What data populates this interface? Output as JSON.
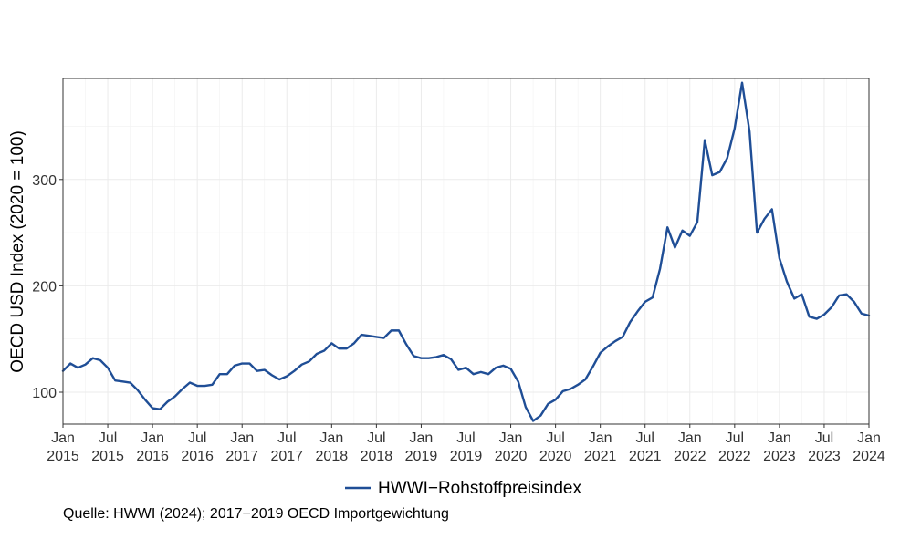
{
  "chart_data": {
    "type": "line",
    "title": "",
    "xlabel": "",
    "ylabel": "OECD USD Index (2020 = 100)",
    "ylim": [
      70,
      395
    ],
    "xlim": [
      "2015-01",
      "2024-01"
    ],
    "yticks": [
      100,
      200,
      300
    ],
    "xticks": [
      {
        "date": "2015-01",
        "month": "Jan",
        "year": "2015"
      },
      {
        "date": "2015-07",
        "month": "Jul",
        "year": "2015"
      },
      {
        "date": "2016-01",
        "month": "Jan",
        "year": "2016"
      },
      {
        "date": "2016-07",
        "month": "Jul",
        "year": "2016"
      },
      {
        "date": "2017-01",
        "month": "Jan",
        "year": "2017"
      },
      {
        "date": "2017-07",
        "month": "Jul",
        "year": "2017"
      },
      {
        "date": "2018-01",
        "month": "Jan",
        "year": "2018"
      },
      {
        "date": "2018-07",
        "month": "Jul",
        "year": "2018"
      },
      {
        "date": "2019-01",
        "month": "Jan",
        "year": "2019"
      },
      {
        "date": "2019-07",
        "month": "Jul",
        "year": "2019"
      },
      {
        "date": "2020-01",
        "month": "Jan",
        "year": "2020"
      },
      {
        "date": "2020-07",
        "month": "Jul",
        "year": "2020"
      },
      {
        "date": "2021-01",
        "month": "Jan",
        "year": "2021"
      },
      {
        "date": "2021-07",
        "month": "Jul",
        "year": "2021"
      },
      {
        "date": "2022-01",
        "month": "Jan",
        "year": "2022"
      },
      {
        "date": "2022-07",
        "month": "Jul",
        "year": "2022"
      },
      {
        "date": "2023-01",
        "month": "Jan",
        "year": "2023"
      },
      {
        "date": "2023-07",
        "month": "Jul",
        "year": "2023"
      },
      {
        "date": "2024-01",
        "month": "Jan",
        "year": "2024"
      }
    ],
    "grid": true,
    "legend_position": "bottom",
    "series": [
      {
        "name": "HWWI−Rohstoffpreisindex",
        "color": "#1f4e96",
        "x": [
          "2015-01",
          "2015-02",
          "2015-03",
          "2015-04",
          "2015-05",
          "2015-06",
          "2015-07",
          "2015-08",
          "2015-09",
          "2015-10",
          "2015-11",
          "2015-12",
          "2016-01",
          "2016-02",
          "2016-03",
          "2016-04",
          "2016-05",
          "2016-06",
          "2016-07",
          "2016-08",
          "2016-09",
          "2016-10",
          "2016-11",
          "2016-12",
          "2017-01",
          "2017-02",
          "2017-03",
          "2017-04",
          "2017-05",
          "2017-06",
          "2017-07",
          "2017-08",
          "2017-09",
          "2017-10",
          "2017-11",
          "2017-12",
          "2018-01",
          "2018-02",
          "2018-03",
          "2018-04",
          "2018-05",
          "2018-06",
          "2018-07",
          "2018-08",
          "2018-09",
          "2018-10",
          "2018-11",
          "2018-12",
          "2019-01",
          "2019-02",
          "2019-03",
          "2019-04",
          "2019-05",
          "2019-06",
          "2019-07",
          "2019-08",
          "2019-09",
          "2019-10",
          "2019-11",
          "2019-12",
          "2020-01",
          "2020-02",
          "2020-03",
          "2020-04",
          "2020-05",
          "2020-06",
          "2020-07",
          "2020-08",
          "2020-09",
          "2020-10",
          "2020-11",
          "2020-12",
          "2021-01",
          "2021-02",
          "2021-03",
          "2021-04",
          "2021-05",
          "2021-06",
          "2021-07",
          "2021-08",
          "2021-09",
          "2021-10",
          "2021-11",
          "2021-12",
          "2022-01",
          "2022-02",
          "2022-03",
          "2022-04",
          "2022-05",
          "2022-06",
          "2022-07",
          "2022-08",
          "2022-09",
          "2022-10",
          "2022-11",
          "2022-12",
          "2023-01",
          "2023-02",
          "2023-03",
          "2023-04",
          "2023-05",
          "2023-06",
          "2023-07",
          "2023-08",
          "2023-09",
          "2023-10",
          "2023-11",
          "2023-12",
          "2024-01"
        ],
        "values": [
          120,
          127,
          123,
          126,
          132,
          130,
          123,
          111,
          110,
          109,
          102,
          93,
          85,
          84,
          91,
          96,
          103,
          109,
          106,
          106,
          107,
          117,
          117,
          125,
          127,
          127,
          120,
          121,
          116,
          112,
          115,
          120,
          126,
          129,
          136,
          139,
          146,
          141,
          141,
          146,
          154,
          153,
          152,
          151,
          158,
          158,
          145,
          134,
          132,
          132,
          133,
          135,
          131,
          121,
          123,
          117,
          119,
          117,
          123,
          125,
          122,
          110,
          86,
          73,
          78,
          89,
          93,
          101,
          103,
          107,
          112,
          124,
          137,
          143,
          148,
          152,
          166,
          176,
          185,
          189,
          216,
          255,
          236,
          252,
          247,
          260,
          337,
          304,
          307,
          320,
          348,
          391,
          345,
          250,
          263,
          272,
          226,
          204,
          188,
          192,
          171,
          169,
          173,
          180,
          191,
          192,
          185,
          174,
          172
        ]
      }
    ]
  },
  "source_note": "Quelle: HWWI (2024); 2017−2019 OECD Importgewichtung"
}
